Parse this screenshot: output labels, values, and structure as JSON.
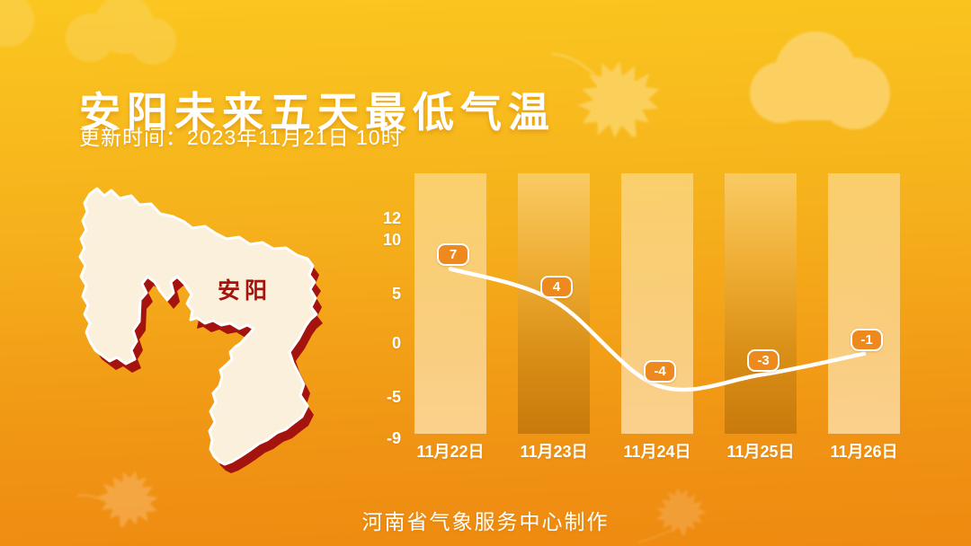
{
  "header": {
    "title": "安阳未来五天最低气温",
    "update_time": "更新时间：2023年11月21日 10时"
  },
  "map": {
    "label": "安阳"
  },
  "chart_data": {
    "type": "line",
    "title": "安阳未来五天最低气温",
    "categories": [
      "11月22日",
      "11月23日",
      "11月24日",
      "11月25日",
      "11月26日"
    ],
    "values": [
      7,
      4,
      -4,
      -3,
      -1
    ],
    "series": [
      {
        "name": "最低气温",
        "values": [
          7,
          4,
          -4,
          -3,
          -1
        ]
      }
    ],
    "y_ticks": [
      12,
      10,
      5,
      0,
      -5,
      -9
    ],
    "ylim": [
      -9,
      12
    ],
    "xlabel": "",
    "ylabel": "",
    "grid": false,
    "legend": false,
    "point_label_style": "badge"
  },
  "footer": {
    "credit": "河南省气象服务中心制作"
  },
  "decor": {
    "icons": [
      "cloud-icon",
      "maple-leaf-icon"
    ]
  },
  "colors": {
    "bg_top": "#FAC71F",
    "bg_bottom": "#EE8A10",
    "badge_fill": "#EE8A1D",
    "line": "#FFFFFF",
    "map_fill": "#FAF0DC",
    "map_shadow": "#A5130F",
    "map_label": "#A3140F",
    "text": "#FFFFFF"
  }
}
